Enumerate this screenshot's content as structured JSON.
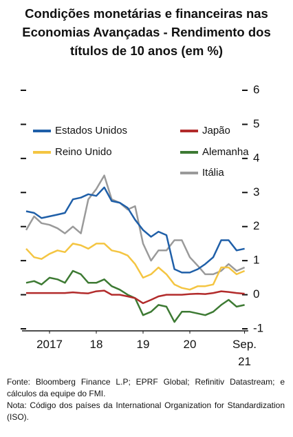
{
  "chart_data": {
    "type": "line",
    "title": "Condições monetárias e financeiras nas Economias Avançadas - Rendimento dos títulos de 10 anos (em %)",
    "x": [
      2017,
      2017.17,
      2017.33,
      2017.5,
      2017.67,
      2017.83,
      2018,
      2018.17,
      2018.33,
      2018.5,
      2018.67,
      2018.83,
      2019,
      2019.17,
      2019.33,
      2019.5,
      2019.67,
      2019.83,
      2020,
      2020.17,
      2020.33,
      2020.5,
      2020.67,
      2020.83,
      2021,
      2021.17,
      2021.33,
      2021.5,
      2021.67
    ],
    "xlim": [
      2017,
      2021.75
    ],
    "xticks": [
      {
        "value": 2017.5,
        "label": "2017"
      },
      {
        "value": 2018.5,
        "label": "18"
      },
      {
        "value": 2019.5,
        "label": "19"
      },
      {
        "value": 2020.5,
        "label": "20"
      },
      {
        "value": 2021.67,
        "label": "Sep. 21"
      }
    ],
    "ylim": [
      -1,
      6
    ],
    "yticks": [
      -1,
      0,
      1,
      2,
      3,
      4,
      5,
      6
    ],
    "series": [
      {
        "name": "Estados Unidos",
        "color": "#1f5fa8",
        "values": [
          2.45,
          2.4,
          2.25,
          2.3,
          2.35,
          2.4,
          2.8,
          2.85,
          2.95,
          2.9,
          3.15,
          2.75,
          2.7,
          2.55,
          2.2,
          1.9,
          1.7,
          1.85,
          1.75,
          0.75,
          0.65,
          0.65,
          0.75,
          0.9,
          1.1,
          1.6,
          1.6,
          1.3,
          1.35
        ]
      },
      {
        "name": "Japão",
        "color": "#b22b2b",
        "values": [
          0.05,
          0.05,
          0.05,
          0.05,
          0.05,
          0.05,
          0.07,
          0.05,
          0.04,
          0.1,
          0.12,
          0.0,
          0.0,
          -0.05,
          -0.1,
          -0.25,
          -0.15,
          -0.05,
          0.0,
          0.0,
          0.0,
          0.02,
          0.03,
          0.02,
          0.05,
          0.1,
          0.08,
          0.05,
          0.03
        ]
      },
      {
        "name": "Reino Unido",
        "color": "#f4c542",
        "values": [
          1.35,
          1.1,
          1.05,
          1.2,
          1.3,
          1.25,
          1.5,
          1.45,
          1.35,
          1.5,
          1.5,
          1.3,
          1.25,
          1.15,
          0.9,
          0.5,
          0.6,
          0.8,
          0.6,
          0.3,
          0.2,
          0.15,
          0.25,
          0.25,
          0.3,
          0.8,
          0.8,
          0.6,
          0.7
        ]
      },
      {
        "name": "Alemanha",
        "color": "#3d7a33",
        "values": [
          0.35,
          0.4,
          0.3,
          0.5,
          0.45,
          0.35,
          0.7,
          0.6,
          0.35,
          0.35,
          0.45,
          0.25,
          0.15,
          0.0,
          -0.1,
          -0.6,
          -0.5,
          -0.3,
          -0.35,
          -0.8,
          -0.5,
          -0.5,
          -0.55,
          -0.6,
          -0.5,
          -0.3,
          -0.15,
          -0.35,
          -0.3
        ]
      },
      {
        "name": "Itália",
        "color": "#9a9a9a",
        "values": [
          1.9,
          2.3,
          2.1,
          2.05,
          1.95,
          1.8,
          2.0,
          1.8,
          2.8,
          3.1,
          3.5,
          2.8,
          2.7,
          2.5,
          2.6,
          1.5,
          1.0,
          1.3,
          1.3,
          1.6,
          1.6,
          1.1,
          0.85,
          0.6,
          0.6,
          0.7,
          0.9,
          0.7,
          0.8
        ]
      }
    ],
    "notes": [
      "Fonte: Bloomberg Finance L.P; EPRF Global; Refinitiv Datastream; e cálculos da equipe do FMI.",
      "Nota: Código dos países da International Organization for Standardization (ISO)."
    ]
  }
}
